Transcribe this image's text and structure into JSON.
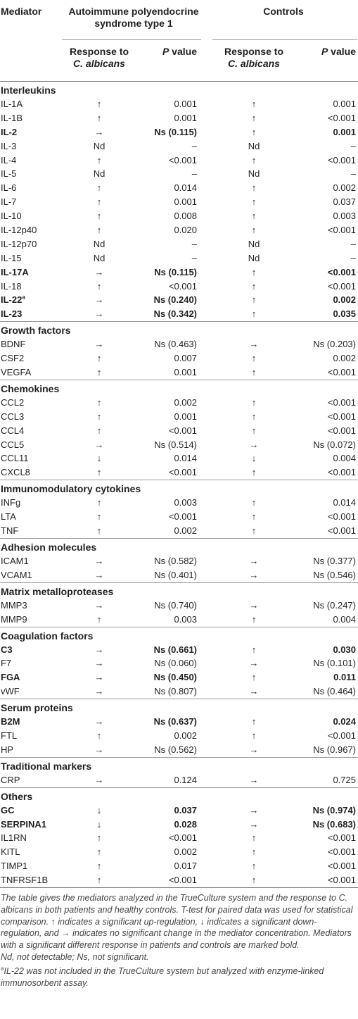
{
  "header": {
    "mediator": "Mediator",
    "aps": "Autoimmune polyendocrine syndrome type 1",
    "controls": "Controls",
    "response_label": "Response to",
    "organism": "C. albicans",
    "p_value_label": "P value"
  },
  "sections": [
    {
      "title": "Interleukins",
      "rows": [
        {
          "name": "IL-1A",
          "aps_resp": "↑",
          "aps_p": "0.001",
          "ctl_resp": "↑",
          "ctl_p": "0.001",
          "bold": false
        },
        {
          "name": "IL-1B",
          "aps_resp": "↑",
          "aps_p": "0.001",
          "ctl_resp": "↑",
          "ctl_p": "<0.001",
          "bold": false
        },
        {
          "name": "IL-2",
          "aps_resp": "→",
          "aps_p": "Ns (0.115)",
          "ctl_resp": "↑",
          "ctl_p": "0.001",
          "bold": true
        },
        {
          "name": "IL-3",
          "aps_resp": "Nd",
          "aps_p": "–",
          "ctl_resp": "Nd",
          "ctl_p": "–",
          "bold": false
        },
        {
          "name": "IL-4",
          "aps_resp": "↑",
          "aps_p": "<0.001",
          "ctl_resp": "↑",
          "ctl_p": "<0.001",
          "bold": false
        },
        {
          "name": "IL-5",
          "aps_resp": "Nd",
          "aps_p": "–",
          "ctl_resp": "Nd",
          "ctl_p": "–",
          "bold": false
        },
        {
          "name": "IL-6",
          "aps_resp": "↑",
          "aps_p": "0.014",
          "ctl_resp": "↑",
          "ctl_p": "0.002",
          "bold": false
        },
        {
          "name": "IL-7",
          "aps_resp": "↑",
          "aps_p": "0.001",
          "ctl_resp": "↑",
          "ctl_p": "0.037",
          "bold": false
        },
        {
          "name": "IL-10",
          "aps_resp": "↑",
          "aps_p": "0.008",
          "ctl_resp": "↑",
          "ctl_p": "0.003",
          "bold": false
        },
        {
          "name": "IL-12p40",
          "aps_resp": "↑",
          "aps_p": "0.020",
          "ctl_resp": "↑",
          "ctl_p": "<0.001",
          "bold": false
        },
        {
          "name": "IL-12p70",
          "aps_resp": "Nd",
          "aps_p": "–",
          "ctl_resp": "Nd",
          "ctl_p": "–",
          "bold": false
        },
        {
          "name": "IL-15",
          "aps_resp": "Nd",
          "aps_p": "–",
          "ctl_resp": "Nd",
          "ctl_p": "–",
          "bold": false
        },
        {
          "name": "IL-17A",
          "aps_resp": "→",
          "aps_p": "Ns (0.115)",
          "ctl_resp": "↑",
          "ctl_p": "<0.001",
          "bold": true
        },
        {
          "name": "IL-18",
          "aps_resp": "↑",
          "aps_p": "<0.001",
          "ctl_resp": "↑",
          "ctl_p": "<0.001",
          "bold": false
        },
        {
          "name": "IL-22",
          "sup": "a",
          "aps_resp": "→",
          "aps_p": "Ns (0.240)",
          "ctl_resp": "↑",
          "ctl_p": "0.002",
          "bold": true
        },
        {
          "name": "IL-23",
          "aps_resp": "→",
          "aps_p": "Ns (0.342)",
          "ctl_resp": "↑",
          "ctl_p": "0.035",
          "bold": true
        }
      ]
    },
    {
      "title": "Growth factors",
      "rows": [
        {
          "name": "BDNF",
          "aps_resp": "→",
          "aps_p": "Ns (0.463)",
          "ctl_resp": "→",
          "ctl_p": "Ns (0.203)",
          "bold": false
        },
        {
          "name": "CSF2",
          "aps_resp": "↑",
          "aps_p": "0.007",
          "ctl_resp": "↑",
          "ctl_p": "0.002",
          "bold": false
        },
        {
          "name": "VEGFA",
          "aps_resp": "↑",
          "aps_p": "0.001",
          "ctl_resp": "↑",
          "ctl_p": "<0.001",
          "bold": false
        }
      ]
    },
    {
      "title": "Chemokines",
      "rows": [
        {
          "name": "CCL2",
          "aps_resp": "↑",
          "aps_p": "0.002",
          "ctl_resp": "↑",
          "ctl_p": "<0.001",
          "bold": false
        },
        {
          "name": "CCL3",
          "aps_resp": "↑",
          "aps_p": "0.001",
          "ctl_resp": "↑",
          "ctl_p": "<0.001",
          "bold": false
        },
        {
          "name": "CCL4",
          "aps_resp": "↑",
          "aps_p": "<0.001",
          "ctl_resp": "↑",
          "ctl_p": "<0.001",
          "bold": false
        },
        {
          "name": "CCL5",
          "aps_resp": "→",
          "aps_p": "Ns (0.514)",
          "ctl_resp": "→",
          "ctl_p": "Ns (0.072)",
          "bold": false
        },
        {
          "name": "CCL11",
          "aps_resp": "↓",
          "aps_p": "0.014",
          "ctl_resp": "↓",
          "ctl_p": "0.004",
          "bold": false
        },
        {
          "name": "CXCL8",
          "aps_resp": "↑",
          "aps_p": "<0.001",
          "ctl_resp": "↑",
          "ctl_p": "<0.001",
          "bold": false
        }
      ]
    },
    {
      "title": "Immunomodulatory cytokines",
      "rows": [
        {
          "name": "INFg",
          "aps_resp": "↑",
          "aps_p": "0.003",
          "ctl_resp": "↑",
          "ctl_p": "0.014",
          "bold": false
        },
        {
          "name": "LTA",
          "aps_resp": "↑",
          "aps_p": "<0.001",
          "ctl_resp": "↑",
          "ctl_p": "<0.001",
          "bold": false
        },
        {
          "name": "TNF",
          "aps_resp": "↑",
          "aps_p": "0.002",
          "ctl_resp": "↑",
          "ctl_p": "<0.001",
          "bold": false
        }
      ]
    },
    {
      "title": "Adhesion molecules",
      "rows": [
        {
          "name": "ICAM1",
          "aps_resp": "→",
          "aps_p": "Ns (0.582)",
          "ctl_resp": "→",
          "ctl_p": "Ns (0.377)",
          "bold": false
        },
        {
          "name": "VCAM1",
          "aps_resp": "→",
          "aps_p": "Ns (0.401)",
          "ctl_resp": "→",
          "ctl_p": "Ns (0.546)",
          "bold": false
        }
      ]
    },
    {
      "title": "Matrix metalloproteases",
      "rows": [
        {
          "name": "MMP3",
          "aps_resp": "→",
          "aps_p": "Ns (0.740)",
          "ctl_resp": "→",
          "ctl_p": "Ns (0.247)",
          "bold": false
        },
        {
          "name": "MMP9",
          "aps_resp": "↑",
          "aps_p": "0.003",
          "ctl_resp": "↑",
          "ctl_p": "0.004",
          "bold": false
        }
      ]
    },
    {
      "title": "Coagulation factors",
      "rows": [
        {
          "name": "C3",
          "aps_resp": "→",
          "aps_p": "Ns (0.661)",
          "ctl_resp": "↑",
          "ctl_p": "0.030",
          "bold": true
        },
        {
          "name": "F7",
          "aps_resp": "→",
          "aps_p": "Ns (0.060)",
          "ctl_resp": "→",
          "ctl_p": "Ns (0.101)",
          "bold": false
        },
        {
          "name": "FGA",
          "aps_resp": "→",
          "aps_p": "Ns (0.450)",
          "ctl_resp": "↑",
          "ctl_p": "0.011",
          "bold": true
        },
        {
          "name": "vWF",
          "aps_resp": "→",
          "aps_p": "Ns (0.807)",
          "ctl_resp": "→",
          "ctl_p": "Ns (0.464)",
          "bold": false
        }
      ]
    },
    {
      "title": "Serum proteins",
      "rows": [
        {
          "name": "B2M",
          "aps_resp": "→",
          "aps_p": "Ns (0.637)",
          "ctl_resp": "↑",
          "ctl_p": "0.024",
          "bold": true
        },
        {
          "name": "FTL",
          "aps_resp": "↑",
          "aps_p": "0.002",
          "ctl_resp": "↑",
          "ctl_p": "<0.001",
          "bold": false
        },
        {
          "name": "HP",
          "aps_resp": "→",
          "aps_p": "Ns (0.562)",
          "ctl_resp": "→",
          "ctl_p": "Ns (0.967)",
          "bold": false
        }
      ]
    },
    {
      "title": "Traditional markers",
      "rows": [
        {
          "name": "CRP",
          "aps_resp": "→",
          "aps_p": "0.124",
          "ctl_resp": "→",
          "ctl_p": "0.725",
          "bold": false
        }
      ]
    },
    {
      "title": "Others",
      "rows": [
        {
          "name": "GC",
          "aps_resp": "↓",
          "aps_p": "0.037",
          "ctl_resp": "→",
          "ctl_p": "Ns (0.974)",
          "bold": true
        },
        {
          "name": "SERPINA1",
          "aps_resp": "↓",
          "aps_p": "0.028",
          "ctl_resp": "→",
          "ctl_p": "Ns (0.683)",
          "bold": true
        },
        {
          "name": "IL1RN",
          "aps_resp": "↑",
          "aps_p": "<0.001",
          "ctl_resp": "↑",
          "ctl_p": "<0.001",
          "bold": false
        },
        {
          "name": "KITL",
          "aps_resp": "↑",
          "aps_p": "0.002",
          "ctl_resp": "↑",
          "ctl_p": "<0.001",
          "bold": false
        },
        {
          "name": "TIMP1",
          "aps_resp": "↑",
          "aps_p": "0.017",
          "ctl_resp": "↑",
          "ctl_p": "<0.001",
          "bold": false
        },
        {
          "name": "TNFRSF1B",
          "aps_resp": "↑",
          "aps_p": "<0.001",
          "ctl_resp": "↑",
          "ctl_p": "<0.001",
          "bold": false
        }
      ]
    }
  ],
  "notes": {
    "main": "The table gives the mediators analyzed in the TrueCulture system and the response to C. albicans in both patients and healthy controls. T-test for paired data was used for statistical comparison. ↑ indicates a significant up-regulation, ↓ indicates a significant down-regulation, and → indicates no significant change in the mediator concentration. Mediators with a significant different response in patients and controls are marked bold.",
    "abbrev": "Nd, not detectable; Ns, not significant.",
    "footnote_mark": "a",
    "footnote": "IL-22 was not included in the TrueCulture system but analyzed with enzyme-linked immunosorbent assay."
  }
}
